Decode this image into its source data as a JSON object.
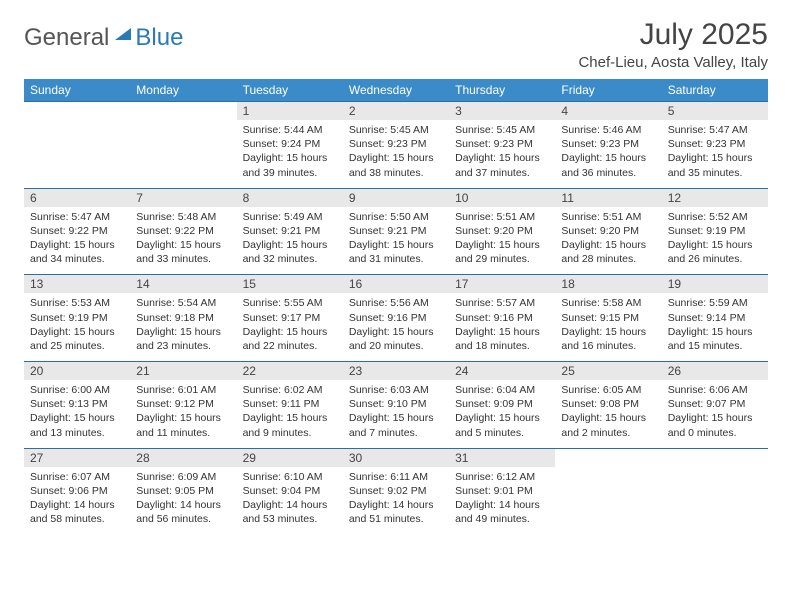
{
  "logo": {
    "general": "General",
    "blue": "Blue"
  },
  "title": "July 2025",
  "location": "Chef-Lieu, Aosta Valley, Italy",
  "colors": {
    "header_bg": "#3b8bc8",
    "header_text": "#ffffff",
    "daynum_bg": "#e8e8e8",
    "border": "#2a6fa3",
    "logo_gray": "#555555",
    "logo_blue": "#2a7ab9"
  },
  "weekdays": [
    "Sunday",
    "Monday",
    "Tuesday",
    "Wednesday",
    "Thursday",
    "Friday",
    "Saturday"
  ],
  "weeks": [
    [
      null,
      null,
      {
        "n": "1",
        "sr": "5:44 AM",
        "ss": "9:24 PM",
        "dl": "15 hours and 39 minutes."
      },
      {
        "n": "2",
        "sr": "5:45 AM",
        "ss": "9:23 PM",
        "dl": "15 hours and 38 minutes."
      },
      {
        "n": "3",
        "sr": "5:45 AM",
        "ss": "9:23 PM",
        "dl": "15 hours and 37 minutes."
      },
      {
        "n": "4",
        "sr": "5:46 AM",
        "ss": "9:23 PM",
        "dl": "15 hours and 36 minutes."
      },
      {
        "n": "5",
        "sr": "5:47 AM",
        "ss": "9:23 PM",
        "dl": "15 hours and 35 minutes."
      }
    ],
    [
      {
        "n": "6",
        "sr": "5:47 AM",
        "ss": "9:22 PM",
        "dl": "15 hours and 34 minutes."
      },
      {
        "n": "7",
        "sr": "5:48 AM",
        "ss": "9:22 PM",
        "dl": "15 hours and 33 minutes."
      },
      {
        "n": "8",
        "sr": "5:49 AM",
        "ss": "9:21 PM",
        "dl": "15 hours and 32 minutes."
      },
      {
        "n": "9",
        "sr": "5:50 AM",
        "ss": "9:21 PM",
        "dl": "15 hours and 31 minutes."
      },
      {
        "n": "10",
        "sr": "5:51 AM",
        "ss": "9:20 PM",
        "dl": "15 hours and 29 minutes."
      },
      {
        "n": "11",
        "sr": "5:51 AM",
        "ss": "9:20 PM",
        "dl": "15 hours and 28 minutes."
      },
      {
        "n": "12",
        "sr": "5:52 AM",
        "ss": "9:19 PM",
        "dl": "15 hours and 26 minutes."
      }
    ],
    [
      {
        "n": "13",
        "sr": "5:53 AM",
        "ss": "9:19 PM",
        "dl": "15 hours and 25 minutes."
      },
      {
        "n": "14",
        "sr": "5:54 AM",
        "ss": "9:18 PM",
        "dl": "15 hours and 23 minutes."
      },
      {
        "n": "15",
        "sr": "5:55 AM",
        "ss": "9:17 PM",
        "dl": "15 hours and 22 minutes."
      },
      {
        "n": "16",
        "sr": "5:56 AM",
        "ss": "9:16 PM",
        "dl": "15 hours and 20 minutes."
      },
      {
        "n": "17",
        "sr": "5:57 AM",
        "ss": "9:16 PM",
        "dl": "15 hours and 18 minutes."
      },
      {
        "n": "18",
        "sr": "5:58 AM",
        "ss": "9:15 PM",
        "dl": "15 hours and 16 minutes."
      },
      {
        "n": "19",
        "sr": "5:59 AM",
        "ss": "9:14 PM",
        "dl": "15 hours and 15 minutes."
      }
    ],
    [
      {
        "n": "20",
        "sr": "6:00 AM",
        "ss": "9:13 PM",
        "dl": "15 hours and 13 minutes."
      },
      {
        "n": "21",
        "sr": "6:01 AM",
        "ss": "9:12 PM",
        "dl": "15 hours and 11 minutes."
      },
      {
        "n": "22",
        "sr": "6:02 AM",
        "ss": "9:11 PM",
        "dl": "15 hours and 9 minutes."
      },
      {
        "n": "23",
        "sr": "6:03 AM",
        "ss": "9:10 PM",
        "dl": "15 hours and 7 minutes."
      },
      {
        "n": "24",
        "sr": "6:04 AM",
        "ss": "9:09 PM",
        "dl": "15 hours and 5 minutes."
      },
      {
        "n": "25",
        "sr": "6:05 AM",
        "ss": "9:08 PM",
        "dl": "15 hours and 2 minutes."
      },
      {
        "n": "26",
        "sr": "6:06 AM",
        "ss": "9:07 PM",
        "dl": "15 hours and 0 minutes."
      }
    ],
    [
      {
        "n": "27",
        "sr": "6:07 AM",
        "ss": "9:06 PM",
        "dl": "14 hours and 58 minutes."
      },
      {
        "n": "28",
        "sr": "6:09 AM",
        "ss": "9:05 PM",
        "dl": "14 hours and 56 minutes."
      },
      {
        "n": "29",
        "sr": "6:10 AM",
        "ss": "9:04 PM",
        "dl": "14 hours and 53 minutes."
      },
      {
        "n": "30",
        "sr": "6:11 AM",
        "ss": "9:02 PM",
        "dl": "14 hours and 51 minutes."
      },
      {
        "n": "31",
        "sr": "6:12 AM",
        "ss": "9:01 PM",
        "dl": "14 hours and 49 minutes."
      },
      null,
      null
    ]
  ],
  "labels": {
    "sunrise": "Sunrise: ",
    "sunset": "Sunset: ",
    "daylight": "Daylight: "
  }
}
